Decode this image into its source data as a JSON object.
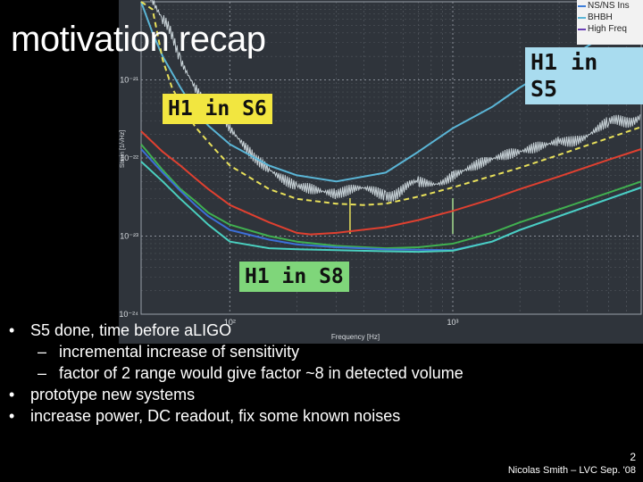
{
  "slide": {
    "title": "motivation recap",
    "bullets": [
      {
        "level": 0,
        "text": "S5 done, time before aLIGO"
      },
      {
        "level": 1,
        "text": "incremental increase of sensitivity"
      },
      {
        "level": 1,
        "text": "factor of 2 range would give factor ~8 in detected volume"
      },
      {
        "level": 0,
        "text": "prototype new systems"
      },
      {
        "level": 0,
        "text": "increase power, DC readout, fix some known noises"
      }
    ],
    "page_number": "2",
    "footer": "Nicolas Smith – LVC Sep. '08"
  },
  "labels": {
    "s6": "H1 in S6",
    "s8": "H1 in S8",
    "s5": "H1 in S5"
  },
  "legend": [
    {
      "label": "NS/NS Ins",
      "color": "#3c7dd9"
    },
    {
      "label": "BHBH",
      "color": "#5ab5d6"
    },
    {
      "label": "High Freq",
      "color": "#6a3fb5"
    }
  ],
  "chart_data": {
    "type": "line",
    "xscale": "log",
    "yscale": "log",
    "xlim": [
      40,
      7000
    ],
    "ylim": [
      1e-24,
      1e-20
    ],
    "xticks": [
      {
        "value": 100,
        "label": "10²"
      },
      {
        "value": 1000,
        "label": "10³"
      }
    ],
    "yticks": [
      {
        "value": 1e-24,
        "label": "10⁻²⁴"
      },
      {
        "value": 1e-23,
        "label": "10⁻²³"
      },
      {
        "value": 1e-22,
        "label": "10⁻²²"
      },
      {
        "value": 1e-21,
        "label": "10⁻²¹"
      }
    ],
    "xlabel": "Frequency [Hz]",
    "ylabel": "Strain [1/√Hz]",
    "series": [
      {
        "name": "H1 in S5 measured",
        "color": "#e3eef3",
        "noisy": true,
        "x": [
          40,
          50,
          60,
          70,
          80,
          100,
          130,
          150,
          200,
          300,
          500,
          700,
          1000,
          2000,
          3000,
          5000,
          7000
        ],
        "y": [
          2.5e-20,
          6e-21,
          2e-21,
          9e-22,
          5e-22,
          2.2e-22,
          9e-23,
          7e-23,
          5e-23,
          3.8e-23,
          3.5e-23,
          4.5e-23,
          6e-23,
          1.1e-22,
          1.6e-22,
          2.6e-22,
          3.6e-22
        ]
      },
      {
        "name": "BHBH",
        "color": "#5ab5d6",
        "x": [
          40,
          45,
          50,
          60,
          70,
          80,
          100,
          150,
          200,
          300,
          500,
          700,
          1000,
          1500,
          2000,
          3000,
          5000,
          7000
        ],
        "y": [
          1e-20,
          4e-21,
          2e-21,
          8e-22,
          4e-22,
          2.6e-22,
          1.5e-22,
          8e-23,
          6e-23,
          5e-23,
          6.5e-23,
          1.2e-22,
          2.4e-22,
          4.5e-22,
          8e-22,
          1.6e-21,
          4e-21,
          9e-21
        ]
      },
      {
        "name": "Dashed yellow (H1 in S6)",
        "color": "#e8e05a",
        "dashed": true,
        "x": [
          40,
          45,
          50,
          55,
          60,
          70,
          80,
          100,
          150,
          200,
          300,
          400,
          500,
          700,
          1000,
          2000,
          3000,
          5000,
          7000
        ],
        "y": [
          1e-20,
          8e-21,
          1.8e-21,
          8e-22,
          5e-22,
          2.5e-22,
          1.6e-22,
          8e-23,
          4e-23,
          3e-23,
          2.6e-23,
          2.5e-23,
          2.6e-23,
          3.2e-23,
          4.2e-23,
          7.5e-23,
          1.1e-22,
          1.8e-22,
          2.5e-22
        ]
      },
      {
        "name": "Red",
        "color": "#e04030",
        "x": [
          40,
          50,
          60,
          70,
          80,
          100,
          150,
          200,
          230,
          300,
          500,
          700,
          1000,
          1500,
          2000,
          3000,
          5000,
          7000
        ],
        "y": [
          2.2e-22,
          1.2e-22,
          8e-23,
          5.5e-23,
          4e-23,
          2.5e-23,
          1.5e-23,
          1.1e-23,
          1.05e-23,
          1.1e-23,
          1.3e-23,
          1.6e-23,
          2.1e-23,
          3e-23,
          4e-23,
          5.8e-23,
          9.5e-23,
          1.3e-22
        ]
      },
      {
        "name": "Green",
        "color": "#40b050",
        "x": [
          40,
          50,
          60,
          70,
          80,
          100,
          150,
          200,
          300,
          500,
          700,
          1000,
          1500,
          2000,
          3000,
          5000,
          7000
        ],
        "y": [
          1.5e-22,
          7e-23,
          4e-23,
          2.8e-23,
          2e-23,
          1.4e-23,
          1e-23,
          8.5e-24,
          7.5e-24,
          7e-24,
          7.2e-24,
          8e-24,
          1.1e-23,
          1.5e-23,
          2.2e-23,
          3.6e-23,
          5e-23
        ]
      },
      {
        "name": "Blue",
        "color": "#3c6fd8",
        "x": [
          40,
          50,
          60,
          70,
          80,
          100,
          150,
          200,
          300,
          500,
          700,
          1000,
          1500,
          2000,
          3000,
          5000,
          7000
        ],
        "y": [
          1.3e-22,
          6.5e-23,
          3.8e-23,
          2.5e-23,
          1.8e-23,
          1.2e-23,
          9e-24,
          7.8e-24,
          7.2e-24,
          6.8e-24,
          6.7e-24,
          6.6e-24,
          8.5e-24,
          1.2e-23,
          1.8e-23,
          3e-23,
          4.2e-23
        ]
      },
      {
        "name": "Teal",
        "color": "#4ad0c0",
        "x": [
          40,
          50,
          60,
          70,
          80,
          100,
          150,
          200,
          300,
          500,
          700,
          1000,
          1500,
          2000,
          3000,
          5000,
          7000
        ],
        "y": [
          9e-23,
          5e-23,
          3e-23,
          2e-23,
          1.4e-23,
          8.5e-24,
          7e-24,
          6.8e-24,
          6.6e-24,
          6.4e-24,
          6.3e-24,
          6.5e-24,
          8.5e-24,
          1.2e-23,
          1.8e-23,
          3e-23,
          4.2e-23
        ]
      }
    ],
    "lines": [
      {
        "frequency": 346,
        "color": "#e8e05a"
      },
      {
        "frequency": 1000,
        "color": "#a7e090"
      }
    ]
  }
}
